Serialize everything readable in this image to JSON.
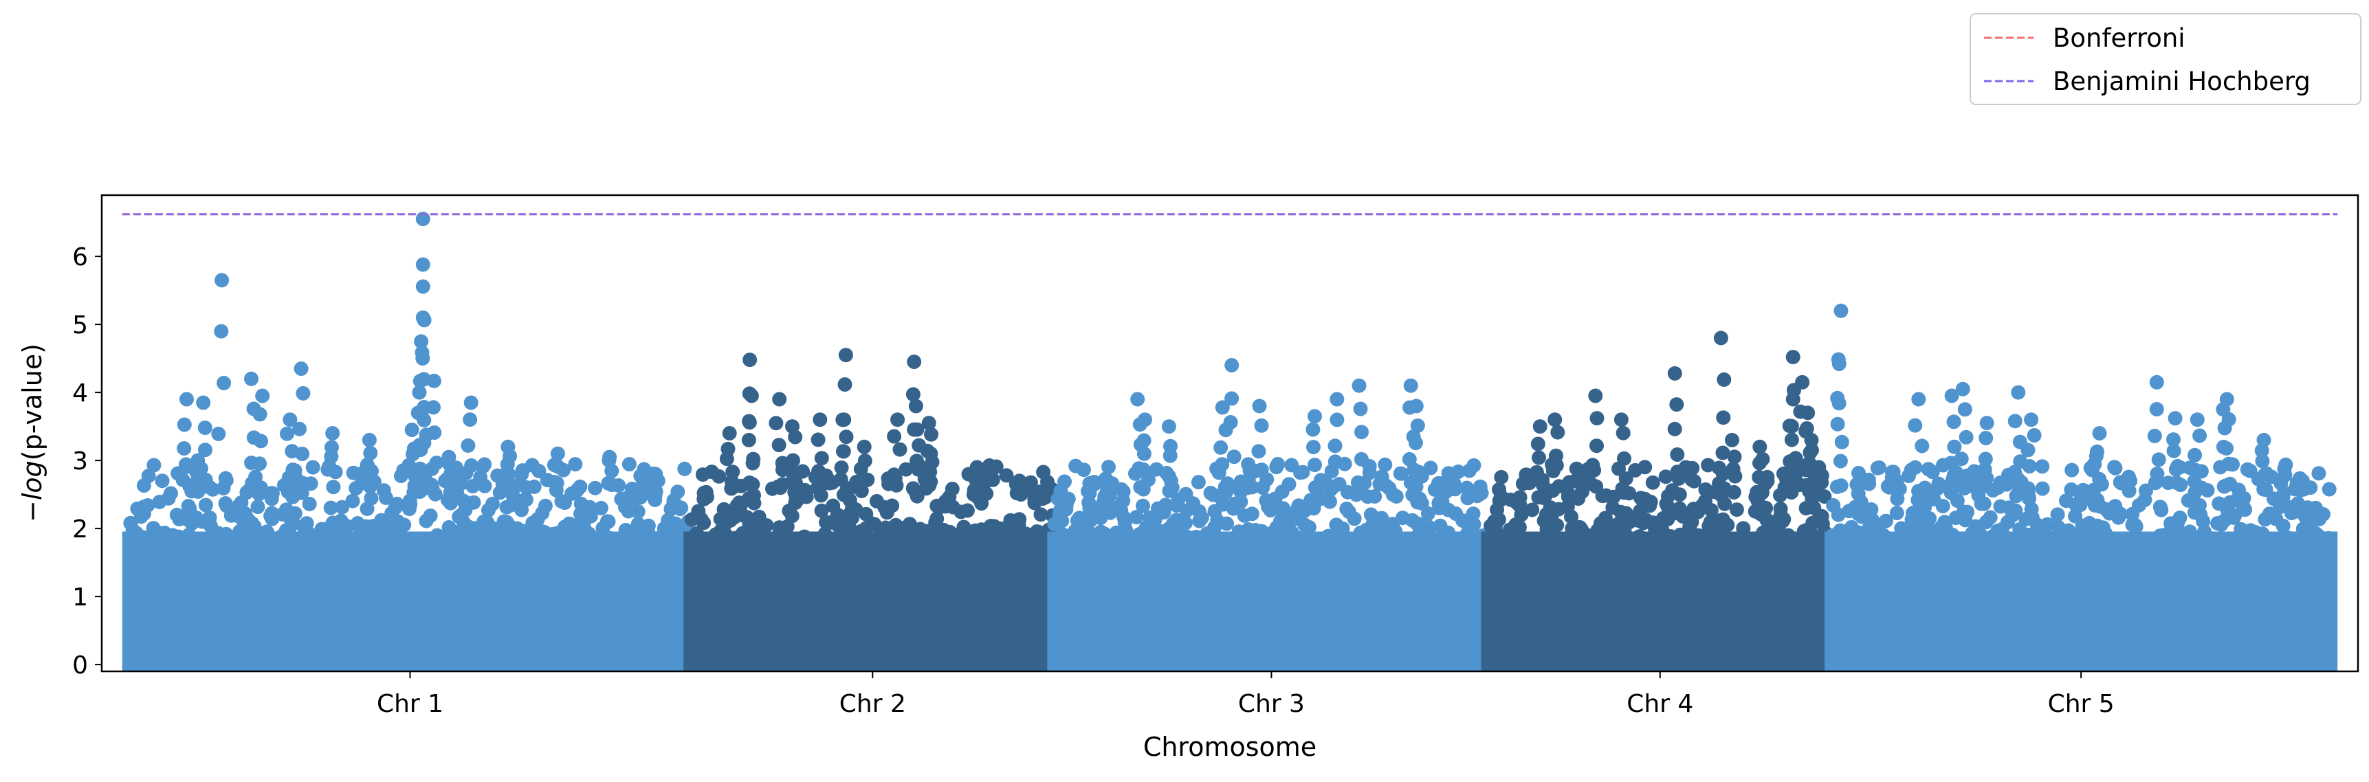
{
  "chart_data": {
    "type": "scatter",
    "subtype": "manhattan",
    "title": "",
    "xlabel": "Chromosome",
    "ylabel_prefix": "−",
    "ylabel_italic": "log",
    "ylabel_suffix": "(p-value)",
    "ylim": [
      -0.1,
      6.9
    ],
    "yticks": [
      0,
      1,
      2,
      3,
      4,
      5,
      6
    ],
    "grid": false,
    "legend_position": "top-right, outside plot",
    "colors": {
      "odd": "#4f93cf",
      "even": "#36638c",
      "bonferroni": "#f07070",
      "bh": "#7b68ee",
      "overlap": "#9152c8"
    },
    "thresholds": [
      {
        "name": "Bonferroni",
        "y": 6.62,
        "color": "#f07070"
      },
      {
        "name": "Benjamini Hochberg",
        "y": 6.62,
        "color": "#7b68ee"
      }
    ],
    "chromosomes": [
      {
        "label": "Chr 1",
        "length": 30.4,
        "color": "#4f93cf",
        "peaks": [
          [
            5.0,
            5.65
          ],
          [
            4.0,
            3.85
          ],
          [
            3.1,
            3.9
          ],
          [
            3.7,
            3.0
          ],
          [
            6.6,
            4.2
          ],
          [
            9.3,
            4.35
          ],
          [
            8.7,
            3.6
          ],
          [
            7.2,
            3.95
          ],
          [
            11.0,
            3.4
          ],
          [
            13.0,
            3.3
          ],
          [
            15.3,
            3.45
          ],
          [
            15.9,
            6.55
          ],
          [
            15.9,
            5.88
          ],
          [
            15.9,
            5.1
          ],
          [
            15.8,
            4.75
          ],
          [
            15.7,
            4.0
          ],
          [
            16.5,
            4.17
          ],
          [
            18.5,
            3.85
          ],
          [
            17.3,
            3.05
          ],
          [
            20.5,
            3.2
          ],
          [
            23.2,
            3.1
          ],
          [
            26.0,
            3.05
          ],
          [
            28.5,
            2.8
          ]
        ]
      },
      {
        "label": "Chr 2",
        "length": 19.7,
        "color": "#36638c",
        "peaks": [
          [
            2.1,
            3.4
          ],
          [
            3.2,
            4.48
          ],
          [
            3.3,
            3.95
          ],
          [
            4.8,
            3.9
          ],
          [
            5.5,
            3.5
          ],
          [
            7.0,
            3.6
          ],
          [
            8.4,
            4.55
          ],
          [
            8.3,
            3.6
          ],
          [
            9.4,
            3.2
          ],
          [
            11.2,
            3.6
          ],
          [
            12.1,
            4.45
          ],
          [
            12.2,
            3.8
          ],
          [
            12.9,
            3.55
          ],
          [
            13.0,
            3.1
          ],
          [
            15.5,
            2.9
          ],
          [
            17.8,
            2.7
          ]
        ]
      },
      {
        "label": "Chr 3",
        "length": 23.5,
        "color": "#4f93cf",
        "peaks": [
          [
            4.5,
            3.9
          ],
          [
            4.9,
            3.6
          ],
          [
            6.2,
            3.5
          ],
          [
            9.1,
            3.78
          ],
          [
            9.6,
            4.4
          ],
          [
            11.1,
            3.8
          ],
          [
            14.1,
            3.65
          ],
          [
            15.3,
            3.9
          ],
          [
            16.5,
            4.1
          ],
          [
            19.3,
            4.1
          ],
          [
            19.6,
            3.8
          ],
          [
            21.5,
            2.7
          ]
        ]
      },
      {
        "label": "Chr 4",
        "length": 18.6,
        "color": "#36638c",
        "peaks": [
          [
            2.8,
            3.5
          ],
          [
            3.6,
            3.6
          ],
          [
            5.8,
            3.95
          ],
          [
            7.2,
            3.6
          ],
          [
            10.1,
            4.28
          ],
          [
            12.6,
            4.8
          ],
          [
            13.2,
            3.3
          ],
          [
            14.7,
            3.2
          ],
          [
            16.5,
            4.52
          ],
          [
            16.5,
            3.9
          ],
          [
            17.0,
            4.15
          ],
          [
            17.3,
            3.7
          ],
          [
            17.5,
            3.3
          ],
          [
            17.9,
            2.9
          ]
        ]
      },
      {
        "label": "Chr 5",
        "length": 27.0,
        "color": "#4f93cf",
        "peaks": [
          [
            0.5,
            5.2
          ],
          [
            0.4,
            4.42
          ],
          [
            4.7,
            3.9
          ],
          [
            6.5,
            3.95
          ],
          [
            7.1,
            4.05
          ],
          [
            8.4,
            3.55
          ],
          [
            10.1,
            4.0
          ],
          [
            10.8,
            3.6
          ],
          [
            14.5,
            3.4
          ],
          [
            17.6,
            4.15
          ],
          [
            18.6,
            3.62
          ],
          [
            19.8,
            3.6
          ],
          [
            21.4,
            3.9
          ],
          [
            21.2,
            3.75
          ],
          [
            23.4,
            3.3
          ],
          [
            25.5,
            2.7
          ]
        ]
      }
    ]
  }
}
